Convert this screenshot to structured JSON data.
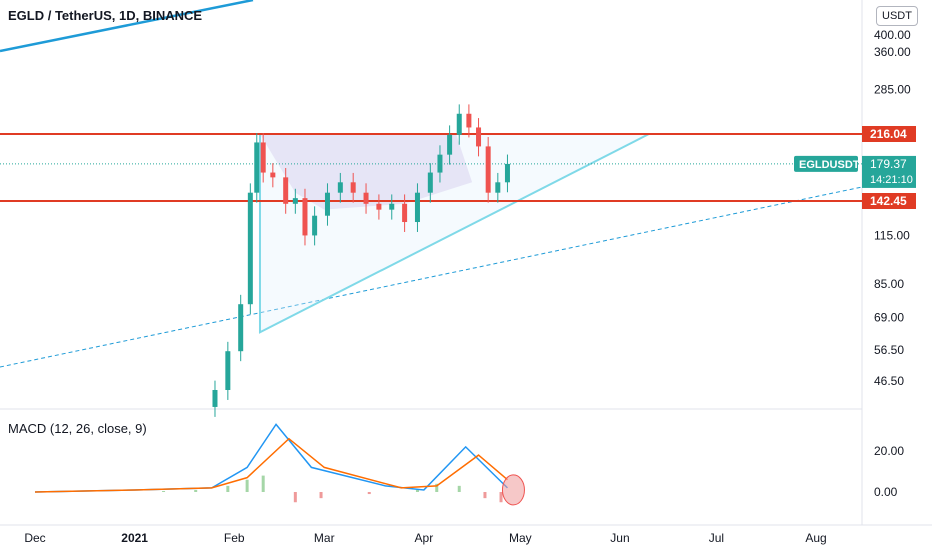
{
  "header": {
    "title": "EGLD / TetherUS, 1D, BINANCE",
    "currency": "USDT",
    "macd_title": "MACD (12, 26, close, 9)"
  },
  "colors": {
    "up": "#26a69a",
    "down": "#ef5350",
    "level_line": "#e03b24",
    "trend_light": "#7fd9e8",
    "trend_dark": "#1e9bd7",
    "pattern_fill": "#d7c4ea",
    "macd_line": "#2196f3",
    "signal_line": "#ff6d00",
    "cloud_green": "#a5d6a7",
    "cloud_red": "#ef9a9a",
    "ticker_badge": "#26a69a"
  },
  "chart_data": [
    {
      "type": "candlestick",
      "title": "EGLD / TetherUS, 1D, BINANCE",
      "y_scale": "log",
      "y_ticks": [
        "46.50",
        "56.50",
        "69.00",
        "85.00",
        "115.00",
        "285.00",
        "360.00",
        "400.00"
      ],
      "x_ticks": [
        "Dec",
        "2021",
        "Feb",
        "Mar",
        "Apr",
        "May",
        "Jun",
        "Jul",
        "Aug"
      ],
      "levels": [
        {
          "label": "216.04",
          "value": 216.04
        },
        {
          "label": "142.45",
          "value": 142.45
        }
      ],
      "last_price": {
        "symbol": "EGLDUSDT",
        "price": "179.37",
        "countdown": "14:21:10",
        "value": 179.37
      },
      "candles": [
        {
          "date": "2021-01-26",
          "close": 44
        },
        {
          "date": "2021-01-30",
          "close": 56
        },
        {
          "date": "2021-02-03",
          "close": 75
        },
        {
          "date": "2021-02-06",
          "close": 150
        },
        {
          "date": "2021-02-08",
          "close": 205
        },
        {
          "date": "2021-02-10",
          "close": 170
        },
        {
          "date": "2021-02-13",
          "close": 165
        },
        {
          "date": "2021-02-17",
          "close": 140
        },
        {
          "date": "2021-02-20",
          "close": 145
        },
        {
          "date": "2021-02-23",
          "close": 115
        },
        {
          "date": "2021-02-26",
          "close": 130
        },
        {
          "date": "2021-03-02",
          "close": 150
        },
        {
          "date": "2021-03-06",
          "close": 160
        },
        {
          "date": "2021-03-10",
          "close": 150
        },
        {
          "date": "2021-03-14",
          "close": 140
        },
        {
          "date": "2021-03-18",
          "close": 135
        },
        {
          "date": "2021-03-22",
          "close": 140
        },
        {
          "date": "2021-03-26",
          "close": 125
        },
        {
          "date": "2021-03-30",
          "close": 150
        },
        {
          "date": "2021-04-03",
          "close": 170
        },
        {
          "date": "2021-04-06",
          "close": 190
        },
        {
          "date": "2021-04-09",
          "close": 215
        },
        {
          "date": "2021-04-12",
          "close": 245
        },
        {
          "date": "2021-04-15",
          "close": 225
        },
        {
          "date": "2021-04-18",
          "close": 200
        },
        {
          "date": "2021-04-21",
          "close": 150
        },
        {
          "date": "2021-04-24",
          "close": 160
        },
        {
          "date": "2021-04-27",
          "close": 179.37
        }
      ]
    },
    {
      "type": "line",
      "title": "MACD (12, 26, close, 9)",
      "y_ticks": [
        "0.00",
        "20.00"
      ],
      "series": [
        {
          "name": "MACD",
          "x": [
            "2020-12-01",
            "2021-01-01",
            "2021-01-25",
            "2021-02-05",
            "2021-02-14",
            "2021-02-25",
            "2021-03-20",
            "2021-04-01",
            "2021-04-14",
            "2021-04-27"
          ],
          "values": [
            0,
            1,
            2,
            12,
            33,
            12,
            3,
            1,
            22,
            2
          ]
        },
        {
          "name": "Signal",
          "x": [
            "2020-12-01",
            "2021-01-01",
            "2021-01-25",
            "2021-02-05",
            "2021-02-18",
            "2021-03-01",
            "2021-03-25",
            "2021-04-05",
            "2021-04-18",
            "2021-04-27"
          ],
          "values": [
            0,
            1,
            2,
            7,
            26,
            12,
            2,
            3,
            18,
            6
          ]
        }
      ]
    }
  ]
}
